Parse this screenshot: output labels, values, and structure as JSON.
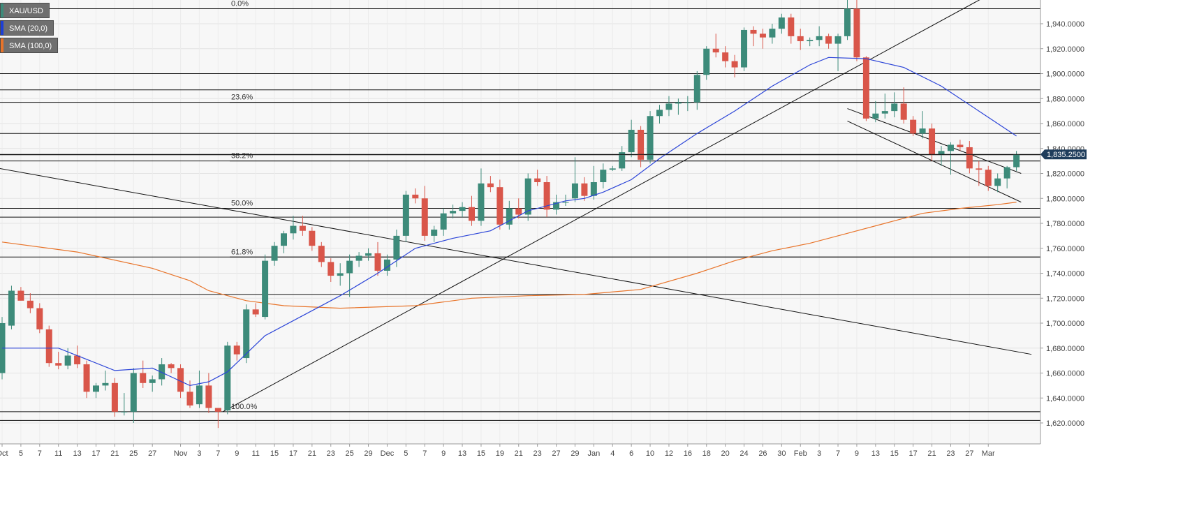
{
  "legend": [
    {
      "label": "XAU/USD",
      "color": "#3d8b7a"
    },
    {
      "label": "SMA (20,0)",
      "color": "#1d3fd6"
    },
    {
      "label": "SMA (100,0)",
      "color": "#e8742a"
    }
  ],
  "colors": {
    "up": "#3d8b7a",
    "down": "#d9564a",
    "sma20": "#2c45d8",
    "sma100": "#e8742a",
    "price_tag": "#1f3d5c"
  },
  "chart_data": {
    "type": "candlestick",
    "symbol": "XAU/USD",
    "ylim": [
      1615,
      1960
    ],
    "y_ticks": [
      1620,
      1640,
      1660,
      1680,
      1700,
      1720,
      1740,
      1760,
      1780,
      1800,
      1820,
      1840,
      1860,
      1880,
      1900,
      1920,
      1940
    ],
    "y_tick_labels": [
      "1,620.0000",
      "1,640.0000",
      "1,660.0000",
      "1,680.0000",
      "1,700.0000",
      "1,720.0000",
      "1,740.0000",
      "1,760.0000",
      "1,780.0000",
      "1,800.0000",
      "1,820.0000",
      "1,840.0000",
      "1,860.0000",
      "1,880.0000",
      "1,900.0000",
      "1,920.0000",
      "1,940.0000"
    ],
    "x_ticks": [
      {
        "index": 0,
        "label": "Oct"
      },
      {
        "index": 2,
        "label": "5"
      },
      {
        "index": 4,
        "label": "7"
      },
      {
        "index": 6,
        "label": "11"
      },
      {
        "index": 8,
        "label": "13"
      },
      {
        "index": 10,
        "label": "17"
      },
      {
        "index": 12,
        "label": "21"
      },
      {
        "index": 14,
        "label": "25"
      },
      {
        "index": 16,
        "label": "27"
      },
      {
        "index": 19,
        "label": "Nov"
      },
      {
        "index": 21,
        "label": "3"
      },
      {
        "index": 23,
        "label": "7"
      },
      {
        "index": 25,
        "label": "9"
      },
      {
        "index": 27,
        "label": "11"
      },
      {
        "index": 29,
        "label": "15"
      },
      {
        "index": 31,
        "label": "17"
      },
      {
        "index": 33,
        "label": "21"
      },
      {
        "index": 35,
        "label": "23"
      },
      {
        "index": 37,
        "label": "25"
      },
      {
        "index": 39,
        "label": "29"
      },
      {
        "index": 41,
        "label": "Dec"
      },
      {
        "index": 43,
        "label": "5"
      },
      {
        "index": 45,
        "label": "7"
      },
      {
        "index": 47,
        "label": "9"
      },
      {
        "index": 49,
        "label": "13"
      },
      {
        "index": 51,
        "label": "15"
      },
      {
        "index": 53,
        "label": "19"
      },
      {
        "index": 55,
        "label": "21"
      },
      {
        "index": 57,
        "label": "23"
      },
      {
        "index": 59,
        "label": "27"
      },
      {
        "index": 61,
        "label": "29"
      },
      {
        "index": 63,
        "label": "Jan"
      },
      {
        "index": 65,
        "label": "4"
      },
      {
        "index": 67,
        "label": "6"
      },
      {
        "index": 69,
        "label": "10"
      },
      {
        "index": 71,
        "label": "12"
      },
      {
        "index": 73,
        "label": "16"
      },
      {
        "index": 75,
        "label": "18"
      },
      {
        "index": 77,
        "label": "20"
      },
      {
        "index": 79,
        "label": "24"
      },
      {
        "index": 81,
        "label": "26"
      },
      {
        "index": 83,
        "label": "30"
      },
      {
        "index": 85,
        "label": "Feb"
      },
      {
        "index": 87,
        "label": "3"
      },
      {
        "index": 89,
        "label": "7"
      },
      {
        "index": 91,
        "label": "9"
      },
      {
        "index": 93,
        "label": "13"
      },
      {
        "index": 95,
        "label": "15"
      },
      {
        "index": 97,
        "label": "17"
      },
      {
        "index": 99,
        "label": "21"
      },
      {
        "index": 101,
        "label": "23"
      },
      {
        "index": 103,
        "label": "27"
      },
      {
        "index": 105,
        "label": "Mar"
      }
    ],
    "last_price": 1835.25,
    "last_price_label": "1,835.2500",
    "candles": [
      {
        "o": 1660,
        "h": 1705,
        "l": 1655,
        "c": 1700
      },
      {
        "o": 1698,
        "h": 1730,
        "l": 1695,
        "c": 1726
      },
      {
        "o": 1726,
        "h": 1729,
        "l": 1718,
        "c": 1718
      },
      {
        "o": 1718,
        "h": 1724,
        "l": 1708,
        "c": 1712
      },
      {
        "o": 1712,
        "h": 1716,
        "l": 1692,
        "c": 1695
      },
      {
        "o": 1695,
        "h": 1698,
        "l": 1665,
        "c": 1668
      },
      {
        "o": 1668,
        "h": 1677,
        "l": 1663,
        "c": 1666
      },
      {
        "o": 1666,
        "h": 1680,
        "l": 1663,
        "c": 1674
      },
      {
        "o": 1674,
        "h": 1682,
        "l": 1664,
        "c": 1667
      },
      {
        "o": 1667,
        "h": 1670,
        "l": 1640,
        "c": 1645
      },
      {
        "o": 1645,
        "h": 1652,
        "l": 1640,
        "c": 1650
      },
      {
        "o": 1650,
        "h": 1662,
        "l": 1646,
        "c": 1652
      },
      {
        "o": 1652,
        "h": 1656,
        "l": 1625,
        "c": 1629
      },
      {
        "o": 1629,
        "h": 1644,
        "l": 1626,
        "c": 1629
      },
      {
        "o": 1629,
        "h": 1664,
        "l": 1620,
        "c": 1660
      },
      {
        "o": 1660,
        "h": 1670,
        "l": 1648,
        "c": 1652
      },
      {
        "o": 1652,
        "h": 1658,
        "l": 1645,
        "c": 1655
      },
      {
        "o": 1655,
        "h": 1672,
        "l": 1650,
        "c": 1667
      },
      {
        "o": 1667,
        "h": 1668,
        "l": 1660,
        "c": 1664
      },
      {
        "o": 1664,
        "h": 1667,
        "l": 1640,
        "c": 1645
      },
      {
        "o": 1645,
        "h": 1654,
        "l": 1632,
        "c": 1634
      },
      {
        "o": 1635,
        "h": 1662,
        "l": 1632,
        "c": 1650
      },
      {
        "o": 1650,
        "h": 1660,
        "l": 1628,
        "c": 1632
      },
      {
        "o": 1632,
        "h": 1630,
        "l": 1616,
        "c": 1629
      },
      {
        "o": 1630,
        "h": 1685,
        "l": 1627,
        "c": 1682
      },
      {
        "o": 1682,
        "h": 1685,
        "l": 1670,
        "c": 1675
      },
      {
        "o": 1672,
        "h": 1715,
        "l": 1668,
        "c": 1711
      },
      {
        "o": 1711,
        "h": 1716,
        "l": 1705,
        "c": 1707
      },
      {
        "o": 1705,
        "h": 1755,
        "l": 1703,
        "c": 1750
      },
      {
        "o": 1750,
        "h": 1765,
        "l": 1746,
        "c": 1762
      },
      {
        "o": 1762,
        "h": 1774,
        "l": 1756,
        "c": 1772
      },
      {
        "o": 1772,
        "h": 1786,
        "l": 1767,
        "c": 1778
      },
      {
        "o": 1778,
        "h": 1786,
        "l": 1770,
        "c": 1774
      },
      {
        "o": 1774,
        "h": 1777,
        "l": 1758,
        "c": 1762
      },
      {
        "o": 1762,
        "h": 1765,
        "l": 1745,
        "c": 1749
      },
      {
        "o": 1749,
        "h": 1752,
        "l": 1733,
        "c": 1738
      },
      {
        "o": 1738,
        "h": 1748,
        "l": 1730,
        "c": 1740
      },
      {
        "o": 1740,
        "h": 1755,
        "l": 1721,
        "c": 1750
      },
      {
        "o": 1750,
        "h": 1757,
        "l": 1745,
        "c": 1754
      },
      {
        "o": 1754,
        "h": 1760,
        "l": 1750,
        "c": 1756
      },
      {
        "o": 1756,
        "h": 1765,
        "l": 1738,
        "c": 1742
      },
      {
        "o": 1742,
        "h": 1755,
        "l": 1738,
        "c": 1751
      },
      {
        "o": 1751,
        "h": 1775,
        "l": 1745,
        "c": 1770
      },
      {
        "o": 1770,
        "h": 1806,
        "l": 1765,
        "c": 1803
      },
      {
        "o": 1803,
        "h": 1808,
        "l": 1796,
        "c": 1800
      },
      {
        "o": 1800,
        "h": 1810,
        "l": 1766,
        "c": 1770
      },
      {
        "o": 1770,
        "h": 1778,
        "l": 1765,
        "c": 1775
      },
      {
        "o": 1775,
        "h": 1792,
        "l": 1770,
        "c": 1788
      },
      {
        "o": 1788,
        "h": 1795,
        "l": 1784,
        "c": 1790
      },
      {
        "o": 1790,
        "h": 1797,
        "l": 1785,
        "c": 1793
      },
      {
        "o": 1793,
        "h": 1802,
        "l": 1778,
        "c": 1782
      },
      {
        "o": 1782,
        "h": 1824,
        "l": 1778,
        "c": 1812
      },
      {
        "o": 1812,
        "h": 1818,
        "l": 1805,
        "c": 1809
      },
      {
        "o": 1809,
        "h": 1815,
        "l": 1775,
        "c": 1779
      },
      {
        "o": 1779,
        "h": 1798,
        "l": 1775,
        "c": 1792
      },
      {
        "o": 1792,
        "h": 1800,
        "l": 1784,
        "c": 1787
      },
      {
        "o": 1787,
        "h": 1820,
        "l": 1782,
        "c": 1816
      },
      {
        "o": 1816,
        "h": 1823,
        "l": 1810,
        "c": 1813
      },
      {
        "o": 1813,
        "h": 1818,
        "l": 1785,
        "c": 1791
      },
      {
        "o": 1791,
        "h": 1803,
        "l": 1787,
        "c": 1797
      },
      {
        "o": 1797,
        "h": 1803,
        "l": 1794,
        "c": 1797
      },
      {
        "o": 1800,
        "h": 1833,
        "l": 1797,
        "c": 1812
      },
      {
        "o": 1812,
        "h": 1817,
        "l": 1798,
        "c": 1802
      },
      {
        "o": 1802,
        "h": 1826,
        "l": 1799,
        "c": 1813
      },
      {
        "o": 1813,
        "h": 1828,
        "l": 1808,
        "c": 1823
      },
      {
        "o": 1823,
        "h": 1826,
        "l": 1822,
        "c": 1824
      },
      {
        "o": 1824,
        "h": 1842,
        "l": 1822,
        "c": 1837
      },
      {
        "o": 1837,
        "h": 1863,
        "l": 1833,
        "c": 1855
      },
      {
        "o": 1855,
        "h": 1858,
        "l": 1825,
        "c": 1831
      },
      {
        "o": 1831,
        "h": 1870,
        "l": 1828,
        "c": 1866
      },
      {
        "o": 1866,
        "h": 1875,
        "l": 1860,
        "c": 1871
      },
      {
        "o": 1871,
        "h": 1882,
        "l": 1866,
        "c": 1876
      },
      {
        "o": 1876,
        "h": 1880,
        "l": 1867,
        "c": 1877
      },
      {
        "o": 1877,
        "h": 1882,
        "l": 1870,
        "c": 1877
      },
      {
        "o": 1877,
        "h": 1902,
        "l": 1871,
        "c": 1899
      },
      {
        "o": 1899,
        "h": 1922,
        "l": 1895,
        "c": 1920
      },
      {
        "o": 1920,
        "h": 1932,
        "l": 1913,
        "c": 1917
      },
      {
        "o": 1917,
        "h": 1922,
        "l": 1905,
        "c": 1910
      },
      {
        "o": 1910,
        "h": 1915,
        "l": 1897,
        "c": 1905
      },
      {
        "o": 1905,
        "h": 1937,
        "l": 1902,
        "c": 1935
      },
      {
        "o": 1935,
        "h": 1938,
        "l": 1922,
        "c": 1932
      },
      {
        "o": 1932,
        "h": 1936,
        "l": 1920,
        "c": 1929
      },
      {
        "o": 1929,
        "h": 1940,
        "l": 1924,
        "c": 1936
      },
      {
        "o": 1936,
        "h": 1948,
        "l": 1932,
        "c": 1945
      },
      {
        "o": 1945,
        "h": 1948,
        "l": 1924,
        "c": 1930
      },
      {
        "o": 1930,
        "h": 1936,
        "l": 1919,
        "c": 1926
      },
      {
        "o": 1926,
        "h": 1929,
        "l": 1922,
        "c": 1927
      },
      {
        "o": 1927,
        "h": 1938,
        "l": 1922,
        "c": 1930
      },
      {
        "o": 1930,
        "h": 1932,
        "l": 1920,
        "c": 1924
      },
      {
        "o": 1924,
        "h": 1932,
        "l": 1902,
        "c": 1930
      },
      {
        "o": 1930,
        "h": 1959,
        "l": 1927,
        "c": 1952
      },
      {
        "o": 1952,
        "h": 1962,
        "l": 1910,
        "c": 1913
      },
      {
        "o": 1913,
        "h": 1914,
        "l": 1862,
        "c": 1864
      },
      {
        "o": 1864,
        "h": 1878,
        "l": 1861,
        "c": 1868
      },
      {
        "o": 1868,
        "h": 1884,
        "l": 1864,
        "c": 1870
      },
      {
        "o": 1870,
        "h": 1885,
        "l": 1865,
        "c": 1876
      },
      {
        "o": 1876,
        "h": 1889,
        "l": 1860,
        "c": 1863
      },
      {
        "o": 1863,
        "h": 1866,
        "l": 1850,
        "c": 1852
      },
      {
        "o": 1852,
        "h": 1870,
        "l": 1848,
        "c": 1856
      },
      {
        "o": 1856,
        "h": 1860,
        "l": 1830,
        "c": 1835
      },
      {
        "o": 1835,
        "h": 1842,
        "l": 1826,
        "c": 1838
      },
      {
        "o": 1838,
        "h": 1845,
        "l": 1819,
        "c": 1843
      },
      {
        "o": 1843,
        "h": 1847,
        "l": 1838,
        "c": 1841
      },
      {
        "o": 1841,
        "h": 1846,
        "l": 1820,
        "c": 1824
      },
      {
        "o": 1824,
        "h": 1830,
        "l": 1810,
        "c": 1823
      },
      {
        "o": 1823,
        "h": 1826,
        "l": 1806,
        "c": 1810
      },
      {
        "o": 1810,
        "h": 1820,
        "l": 1805,
        "c": 1816
      },
      {
        "o": 1816,
        "h": 1826,
        "l": 1808,
        "c": 1825
      },
      {
        "o": 1825,
        "h": 1838,
        "l": 1822,
        "c": 1835.25
      }
    ],
    "sma20": [
      [
        0,
        1680
      ],
      [
        6,
        1680
      ],
      [
        12,
        1662
      ],
      [
        16,
        1664
      ],
      [
        20,
        1650
      ],
      [
        22,
        1653
      ],
      [
        24,
        1661
      ],
      [
        28,
        1690
      ],
      [
        32,
        1706
      ],
      [
        36,
        1722
      ],
      [
        40,
        1740
      ],
      [
        44,
        1760
      ],
      [
        48,
        1768
      ],
      [
        52,
        1774
      ],
      [
        56,
        1790
      ],
      [
        60,
        1798
      ],
      [
        62,
        1800
      ],
      [
        64,
        1805
      ],
      [
        67,
        1815
      ],
      [
        70,
        1832
      ],
      [
        74,
        1852
      ],
      [
        78,
        1870
      ],
      [
        82,
        1890
      ],
      [
        86,
        1907
      ],
      [
        88,
        1913
      ],
      [
        92,
        1912
      ],
      [
        96,
        1905
      ],
      [
        100,
        1890
      ],
      [
        104,
        1870
      ],
      [
        108,
        1850
      ]
    ],
    "sma100": [
      [
        0,
        1765
      ],
      [
        8,
        1757
      ],
      [
        16,
        1744
      ],
      [
        20,
        1734
      ],
      [
        22,
        1726
      ],
      [
        26,
        1718
      ],
      [
        30,
        1714
      ],
      [
        36,
        1712
      ],
      [
        44,
        1714
      ],
      [
        50,
        1720
      ],
      [
        56,
        1722
      ],
      [
        62,
        1723
      ],
      [
        68,
        1727
      ],
      [
        74,
        1740
      ],
      [
        78,
        1750
      ],
      [
        82,
        1758
      ],
      [
        86,
        1764
      ],
      [
        90,
        1772
      ],
      [
        94,
        1780
      ],
      [
        98,
        1788
      ],
      [
        102,
        1792
      ],
      [
        106,
        1795
      ],
      [
        108,
        1797
      ]
    ],
    "horizontal_levels": [
      1952,
      1900,
      1887,
      1877,
      1852,
      1835,
      1830,
      1792,
      1785,
      1753,
      1723,
      1629,
      1622
    ],
    "fibonacci_levels": [
      {
        "label": "0.0%",
        "value": 1952
      },
      {
        "label": "23.6%",
        "value": 1877
      },
      {
        "label": "38.2%",
        "value": 1830
      },
      {
        "label": "50.0%",
        "value": 1792
      },
      {
        "label": "61.8%",
        "value": 1753
      },
      {
        "label": "100.0%",
        "value": 1629
      }
    ],
    "trendlines": [
      {
        "from": [
          -1,
          1825
        ],
        "to": [
          109.6,
          1675
        ]
      },
      {
        "from": [
          23.5,
          1629
        ],
        "to": [
          105.5,
          1965
        ]
      },
      {
        "from": [
          90.0,
          1872
        ],
        "to": [
          108.5,
          1820
        ]
      },
      {
        "from": [
          90.0,
          1862
        ],
        "to": [
          108.5,
          1797
        ]
      }
    ]
  }
}
